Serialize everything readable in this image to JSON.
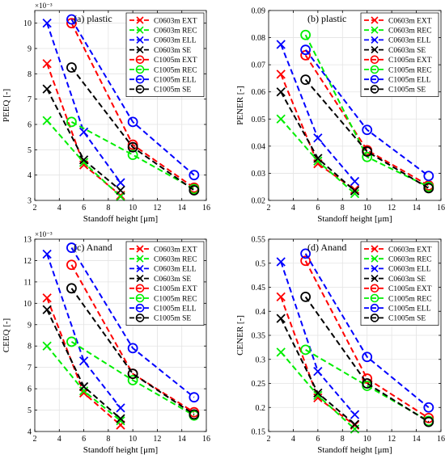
{
  "chart_data": [
    {
      "type": "line",
      "panel": "top-left",
      "title": "(a) plastic",
      "xlabel": "Standoff height [μm]",
      "ylabel": "PEEQ [-]",
      "y_exponent_label": "×10⁻³",
      "xlim": [
        2,
        16
      ],
      "ylim": [
        0.003,
        0.0105
      ],
      "xticks": [
        2,
        4,
        6,
        8,
        10,
        12,
        14,
        16
      ],
      "xtick_labels": [
        "2",
        "4",
        "6",
        "8",
        "10",
        "12",
        "14",
        "16"
      ],
      "yticks": [
        0.003,
        0.004,
        0.005,
        0.006,
        0.007,
        0.008,
        0.009,
        0.01
      ],
      "ytick_labels": [
        "3",
        "4",
        "5",
        "6",
        "7",
        "8",
        "9",
        "10"
      ],
      "grid": true,
      "legend_position": "top-right",
      "series": [
        {
          "name": "C0603m EXT",
          "color": "#ff0000",
          "marker": "x",
          "x": [
            3,
            6,
            9
          ],
          "y": [
            0.0084,
            0.0044,
            0.0032
          ]
        },
        {
          "name": "C0603m REC",
          "color": "#00ee00",
          "marker": "x",
          "x": [
            3,
            6,
            9
          ],
          "y": [
            0.00615,
            0.0045,
            0.00315
          ]
        },
        {
          "name": "C0603m ELL",
          "color": "#0000ff",
          "marker": "x",
          "x": [
            3,
            6,
            9
          ],
          "y": [
            0.01,
            0.0057,
            0.0037
          ]
        },
        {
          "name": "C0603m SE",
          "color": "#000000",
          "marker": "x",
          "x": [
            3,
            6,
            9
          ],
          "y": [
            0.0074,
            0.0046,
            0.0034
          ]
        },
        {
          "name": "C1005m EXT",
          "color": "#ff0000",
          "marker": "o",
          "x": [
            5,
            10,
            15
          ],
          "y": [
            0.01,
            0.0052,
            0.0035
          ]
        },
        {
          "name": "C1005m REC",
          "color": "#00ee00",
          "marker": "o",
          "x": [
            5,
            10,
            15
          ],
          "y": [
            0.0061,
            0.0048,
            0.00345
          ]
        },
        {
          "name": "C1005m ELL",
          "color": "#0000ff",
          "marker": "o",
          "x": [
            5,
            10,
            15
          ],
          "y": [
            0.01015,
            0.0061,
            0.004
          ]
        },
        {
          "name": "C1005m SE",
          "color": "#000000",
          "marker": "o",
          "x": [
            5,
            10,
            15
          ],
          "y": [
            0.00825,
            0.0051,
            0.0034
          ]
        }
      ]
    },
    {
      "type": "line",
      "panel": "top-right",
      "title": "(b) plastic",
      "xlabel": "Standoff height [μm]",
      "ylabel": "PENER [-]",
      "y_exponent_label": "",
      "xlim": [
        2,
        16
      ],
      "ylim": [
        0.02,
        0.09
      ],
      "xticks": [
        2,
        4,
        6,
        8,
        10,
        12,
        14,
        16
      ],
      "xtick_labels": [
        "2",
        "4",
        "6",
        "8",
        "10",
        "12",
        "14",
        "16"
      ],
      "yticks": [
        0.02,
        0.03,
        0.04,
        0.05,
        0.06,
        0.07,
        0.08,
        0.09
      ],
      "ytick_labels": [
        "0.02",
        "0.03",
        "0.04",
        "0.05",
        "0.06",
        "0.07",
        "0.08",
        "0.09"
      ],
      "grid": true,
      "legend_position": "top-right",
      "series": [
        {
          "name": "C0603m EXT",
          "color": "#ff0000",
          "marker": "x",
          "x": [
            3,
            6,
            9
          ],
          "y": [
            0.0665,
            0.0335,
            0.024
          ]
        },
        {
          "name": "C0603m REC",
          "color": "#00ee00",
          "marker": "x",
          "x": [
            3,
            6,
            9
          ],
          "y": [
            0.05,
            0.0345,
            0.0225
          ]
        },
        {
          "name": "C0603m ELL",
          "color": "#0000ff",
          "marker": "x",
          "x": [
            3,
            6,
            9
          ],
          "y": [
            0.0775,
            0.043,
            0.027
          ]
        },
        {
          "name": "C0603m SE",
          "color": "#000000",
          "marker": "x",
          "x": [
            3,
            6,
            9
          ],
          "y": [
            0.06,
            0.0355,
            0.0235
          ]
        },
        {
          "name": "C1005m EXT",
          "color": "#ff0000",
          "marker": "o",
          "x": [
            5,
            10,
            15
          ],
          "y": [
            0.0735,
            0.0385,
            0.0255
          ]
        },
        {
          "name": "C1005m REC",
          "color": "#00ee00",
          "marker": "o",
          "x": [
            5,
            10,
            15
          ],
          "y": [
            0.081,
            0.036,
            0.025
          ]
        },
        {
          "name": "C1005m ELL",
          "color": "#0000ff",
          "marker": "o",
          "x": [
            5,
            10,
            15
          ],
          "y": [
            0.0755,
            0.046,
            0.029
          ]
        },
        {
          "name": "C1005m SE",
          "color": "#000000",
          "marker": "o",
          "x": [
            5,
            10,
            15
          ],
          "y": [
            0.0645,
            0.038,
            0.0245
          ]
        }
      ]
    },
    {
      "type": "line",
      "panel": "bottom-left",
      "title": "(c) Anand",
      "xlabel": "Standoff height [μm]",
      "ylabel": "CEEQ [-]",
      "y_exponent_label": "×10⁻³",
      "xlim": [
        2,
        16
      ],
      "ylim": [
        0.004,
        0.013
      ],
      "xticks": [
        2,
        4,
        6,
        8,
        10,
        12,
        14,
        16
      ],
      "xtick_labels": [
        "2",
        "4",
        "6",
        "8",
        "10",
        "12",
        "14",
        "16"
      ],
      "yticks": [
        0.004,
        0.005,
        0.006,
        0.007,
        0.008,
        0.009,
        0.01,
        0.011,
        0.012,
        0.013
      ],
      "ytick_labels": [
        "4",
        "5",
        "6",
        "7",
        "8",
        "9",
        "10",
        "11",
        "12",
        "13"
      ],
      "grid": true,
      "legend_position": "top-right",
      "series": [
        {
          "name": "C0603m EXT",
          "color": "#ff0000",
          "marker": "x",
          "x": [
            3,
            6,
            9
          ],
          "y": [
            0.01025,
            0.0058,
            0.0043
          ]
        },
        {
          "name": "C0603m REC",
          "color": "#00ee00",
          "marker": "x",
          "x": [
            3,
            6,
            9
          ],
          "y": [
            0.008,
            0.0059,
            0.0045
          ]
        },
        {
          "name": "C0603m ELL",
          "color": "#0000ff",
          "marker": "x",
          "x": [
            3,
            6,
            9
          ],
          "y": [
            0.0123,
            0.0073,
            0.0051
          ]
        },
        {
          "name": "C0603m SE",
          "color": "#000000",
          "marker": "x",
          "x": [
            3,
            6,
            9
          ],
          "y": [
            0.0097,
            0.0061,
            0.0046
          ]
        },
        {
          "name": "C1005m EXT",
          "color": "#ff0000",
          "marker": "o",
          "x": [
            5,
            10,
            15
          ],
          "y": [
            0.0118,
            0.0067,
            0.0049
          ]
        },
        {
          "name": "C1005m REC",
          "color": "#00ee00",
          "marker": "o",
          "x": [
            5,
            10,
            15
          ],
          "y": [
            0.0082,
            0.0064,
            0.00475
          ]
        },
        {
          "name": "C1005m ELL",
          "color": "#0000ff",
          "marker": "o",
          "x": [
            5,
            10,
            15
          ],
          "y": [
            0.0126,
            0.0079,
            0.0056
          ]
        },
        {
          "name": "C1005m SE",
          "color": "#000000",
          "marker": "o",
          "x": [
            5,
            10,
            15
          ],
          "y": [
            0.0107,
            0.0067,
            0.0048
          ]
        }
      ]
    },
    {
      "type": "line",
      "panel": "bottom-right",
      "title": "(d) Anand",
      "xlabel": "Standoff height [μm]",
      "ylabel": "CENER [-]",
      "y_exponent_label": "",
      "xlim": [
        2,
        16
      ],
      "ylim": [
        0.15,
        0.55
      ],
      "xticks": [
        2,
        4,
        6,
        8,
        10,
        12,
        14,
        16
      ],
      "xtick_labels": [
        "2",
        "4",
        "6",
        "8",
        "10",
        "12",
        "14",
        "16"
      ],
      "yticks": [
        0.15,
        0.2,
        0.25,
        0.3,
        0.35,
        0.4,
        0.45,
        0.5,
        0.55
      ],
      "ytick_labels": [
        "0.15",
        "0.2",
        "0.25",
        "0.3",
        "0.35",
        "0.4",
        "0.45",
        "0.5",
        "0.55"
      ],
      "grid": true,
      "legend_position": "top-right",
      "series": [
        {
          "name": "C0603m EXT",
          "color": "#ff0000",
          "marker": "x",
          "x": [
            3,
            6,
            9
          ],
          "y": [
            0.43,
            0.22,
            0.163
          ]
        },
        {
          "name": "C0603m REC",
          "color": "#00ee00",
          "marker": "x",
          "x": [
            3,
            6,
            9
          ],
          "y": [
            0.315,
            0.225,
            0.155
          ]
        },
        {
          "name": "C0603m ELL",
          "color": "#0000ff",
          "marker": "x",
          "x": [
            3,
            6,
            9
          ],
          "y": [
            0.503,
            0.275,
            0.185
          ]
        },
        {
          "name": "C0603m SE",
          "color": "#000000",
          "marker": "x",
          "x": [
            3,
            6,
            9
          ],
          "y": [
            0.385,
            0.23,
            0.165
          ]
        },
        {
          "name": "C1005m EXT",
          "color": "#ff0000",
          "marker": "o",
          "x": [
            5,
            10,
            15
          ],
          "y": [
            0.505,
            0.26,
            0.178
          ]
        },
        {
          "name": "C1005m REC",
          "color": "#00ee00",
          "marker": "o",
          "x": [
            5,
            10,
            15
          ],
          "y": [
            0.32,
            0.245,
            0.172
          ]
        },
        {
          "name": "C1005m ELL",
          "color": "#0000ff",
          "marker": "o",
          "x": [
            5,
            10,
            15
          ],
          "y": [
            0.52,
            0.305,
            0.2
          ]
        },
        {
          "name": "C1005m SE",
          "color": "#000000",
          "marker": "o",
          "x": [
            5,
            10,
            15
          ],
          "y": [
            0.43,
            0.25,
            0.17
          ]
        }
      ]
    }
  ]
}
